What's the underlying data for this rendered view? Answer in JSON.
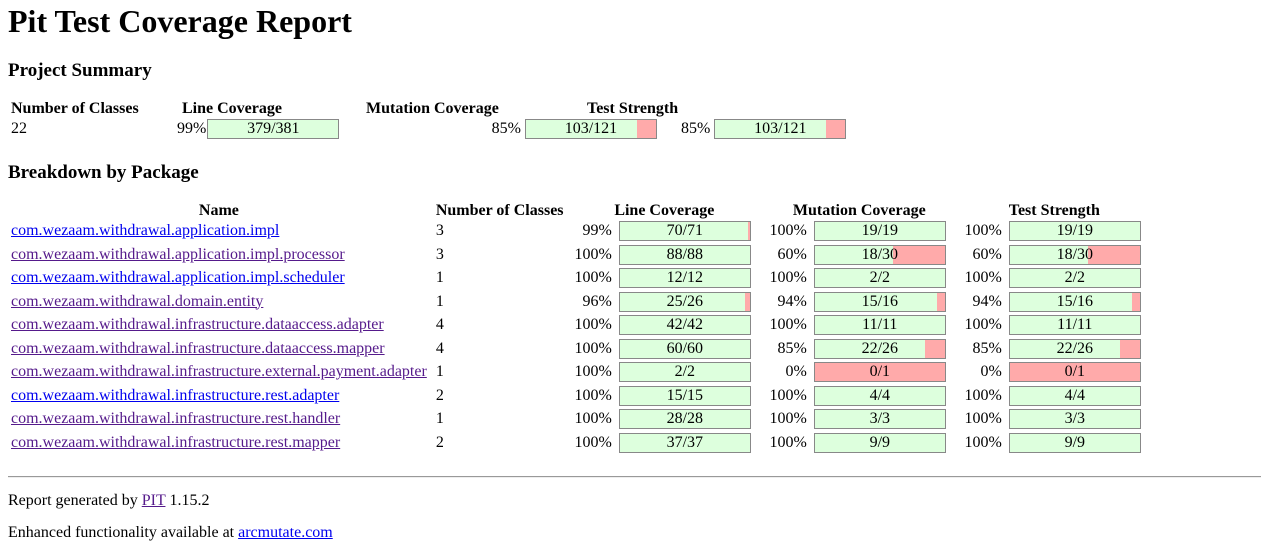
{
  "title": "Pit Test Coverage Report",
  "summary": {
    "heading": "Project Summary",
    "headers": [
      "Number of Classes",
      "Line Coverage",
      "Mutation Coverage",
      "Test Strength"
    ],
    "classes": "22",
    "line": {
      "pct": "99%",
      "text": "379/381",
      "ratio": 0.9948
    },
    "mutation": {
      "pct": "85%",
      "text": "103/121",
      "ratio": 0.8512
    },
    "strength": {
      "pct": "85%",
      "text": "103/121",
      "ratio": 0.8512
    }
  },
  "breakdown": {
    "heading": "Breakdown by Package",
    "headers": [
      "Name",
      "Number of Classes",
      "Line Coverage",
      "Mutation Coverage",
      "Test Strength"
    ],
    "rows": [
      {
        "name": "com.wezaam.withdrawal.application.impl",
        "visited": false,
        "classes": "3",
        "line": {
          "pct": "99%",
          "text": "70/71",
          "ratio": 0.9859
        },
        "mutation": {
          "pct": "100%",
          "text": "19/19",
          "ratio": 1
        },
        "strength": {
          "pct": "100%",
          "text": "19/19",
          "ratio": 1
        }
      },
      {
        "name": "com.wezaam.withdrawal.application.impl.processor",
        "visited": true,
        "classes": "3",
        "line": {
          "pct": "100%",
          "text": "88/88",
          "ratio": 1
        },
        "mutation": {
          "pct": "60%",
          "text": "18/30",
          "ratio": 0.6
        },
        "strength": {
          "pct": "60%",
          "text": "18/30",
          "ratio": 0.6
        }
      },
      {
        "name": "com.wezaam.withdrawal.application.impl.scheduler",
        "visited": false,
        "classes": "1",
        "line": {
          "pct": "100%",
          "text": "12/12",
          "ratio": 1
        },
        "mutation": {
          "pct": "100%",
          "text": "2/2",
          "ratio": 1
        },
        "strength": {
          "pct": "100%",
          "text": "2/2",
          "ratio": 1
        }
      },
      {
        "name": "com.wezaam.withdrawal.domain.entity",
        "visited": true,
        "classes": "1",
        "line": {
          "pct": "96%",
          "text": "25/26",
          "ratio": 0.9615
        },
        "mutation": {
          "pct": "94%",
          "text": "15/16",
          "ratio": 0.9375
        },
        "strength": {
          "pct": "94%",
          "text": "15/16",
          "ratio": 0.9375
        }
      },
      {
        "name": "com.wezaam.withdrawal.infrastructure.dataaccess.adapter",
        "visited": true,
        "classes": "4",
        "line": {
          "pct": "100%",
          "text": "42/42",
          "ratio": 1
        },
        "mutation": {
          "pct": "100%",
          "text": "11/11",
          "ratio": 1
        },
        "strength": {
          "pct": "100%",
          "text": "11/11",
          "ratio": 1
        }
      },
      {
        "name": "com.wezaam.withdrawal.infrastructure.dataaccess.mapper",
        "visited": true,
        "classes": "4",
        "line": {
          "pct": "100%",
          "text": "60/60",
          "ratio": 1
        },
        "mutation": {
          "pct": "85%",
          "text": "22/26",
          "ratio": 0.8462
        },
        "strength": {
          "pct": "85%",
          "text": "22/26",
          "ratio": 0.8462
        }
      },
      {
        "name": "com.wezaam.withdrawal.infrastructure.external.payment.adapter",
        "visited": true,
        "classes": "1",
        "line": {
          "pct": "100%",
          "text": "2/2",
          "ratio": 1
        },
        "mutation": {
          "pct": "0%",
          "text": "0/1",
          "ratio": 0
        },
        "strength": {
          "pct": "0%",
          "text": "0/1",
          "ratio": 0
        }
      },
      {
        "name": "com.wezaam.withdrawal.infrastructure.rest.adapter",
        "visited": false,
        "classes": "2",
        "line": {
          "pct": "100%",
          "text": "15/15",
          "ratio": 1
        },
        "mutation": {
          "pct": "100%",
          "text": "4/4",
          "ratio": 1
        },
        "strength": {
          "pct": "100%",
          "text": "4/4",
          "ratio": 1
        }
      },
      {
        "name": "com.wezaam.withdrawal.infrastructure.rest.handler",
        "visited": true,
        "classes": "1",
        "line": {
          "pct": "100%",
          "text": "28/28",
          "ratio": 1
        },
        "mutation": {
          "pct": "100%",
          "text": "3/3",
          "ratio": 1
        },
        "strength": {
          "pct": "100%",
          "text": "3/3",
          "ratio": 1
        }
      },
      {
        "name": "com.wezaam.withdrawal.infrastructure.rest.mapper",
        "visited": true,
        "classes": "2",
        "line": {
          "pct": "100%",
          "text": "37/37",
          "ratio": 1
        },
        "mutation": {
          "pct": "100%",
          "text": "9/9",
          "ratio": 1
        },
        "strength": {
          "pct": "100%",
          "text": "9/9",
          "ratio": 1
        }
      }
    ]
  },
  "footer": {
    "generated_prefix": "Report generated by ",
    "pit_link": "PIT",
    "version": " 1.15.2",
    "enhanced_prefix": "Enhanced functionality available at ",
    "arcmutate_link": "arcmutate.com"
  },
  "colors": {
    "covered": "#ddffdd",
    "uncovered": "#ffaaaa",
    "link": "#0000ee",
    "visited": "#551a8b"
  }
}
